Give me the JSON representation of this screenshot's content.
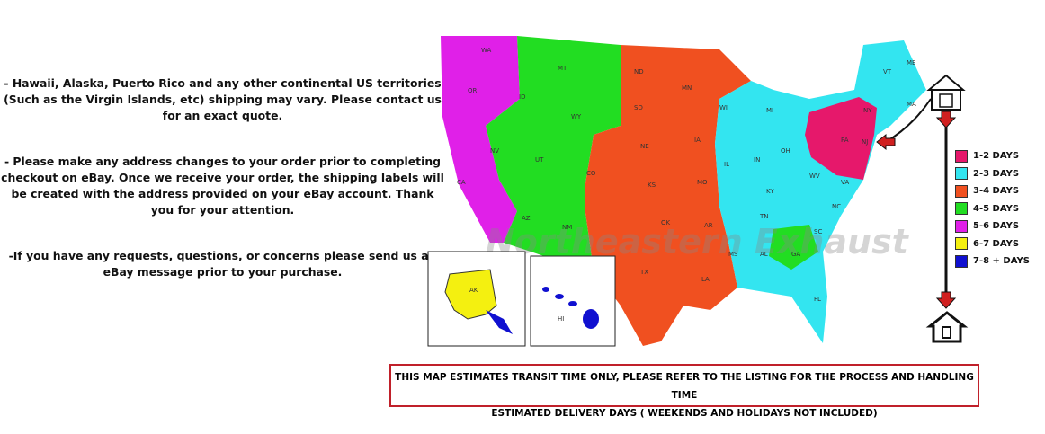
{
  "notes": [
    "- Hawaii, Alaska, Puerto Rico and any other continental US territories (Such as the Virgin Islands, etc) shipping may vary. Please contact us for an exact quote.",
    "- Please make any address changes to your order prior to completing checkout on eBay. Once we receive your order, the shipping labels will be created with the address provided on your eBay account. Thank you for your attention.",
    "-If you have any requests, questions, or concerns please send us an eBay message prior to your purchase."
  ],
  "watermark": "Northeastern Exhaust",
  "legend": [
    {
      "label": "1-2 DAYS",
      "color": "#e6186b"
    },
    {
      "label": "2-3 DAYS",
      "color": "#33e5f0"
    },
    {
      "label": "3-4 DAYS",
      "color": "#f05020"
    },
    {
      "label": "4-5 DAYS",
      "color": "#22dd22"
    },
    {
      "label": "5-6 DAYS",
      "color": "#e020e8"
    },
    {
      "label": "6-7 DAYS",
      "color": "#f4f010"
    },
    {
      "label": "7-8 + DAYS",
      "color": "#1010d0"
    }
  ],
  "icons": {
    "origin": "warehouse-icon",
    "destination": "house-icon",
    "arrow": "arrow-down-icon"
  },
  "notice": {
    "line1": "THIS MAP ESTIMATES TRANSIT TIME ONLY, PLEASE REFER TO THE LISTING FOR THE PROCESS AND HANDLING TIME",
    "line2": "ESTIMATED DELIVERY DAYS ( WEEKENDS AND HOLIDAYS NOT INCLUDED)"
  },
  "state_labels": [
    "WA",
    "OR",
    "CA",
    "ID",
    "NV",
    "MT",
    "WY",
    "UT",
    "AZ",
    "CO",
    "NM",
    "ND",
    "SD",
    "NE",
    "KS",
    "OK",
    "TX",
    "MN",
    "IA",
    "MO",
    "WI",
    "AR",
    "LA",
    "IL",
    "MI",
    "IN",
    "OH",
    "KY",
    "TN",
    "MS",
    "AL",
    "GA",
    "FL",
    "SC",
    "NC",
    "VA",
    "WV",
    "PA",
    "NY",
    "NJ",
    "VT",
    "ME",
    "MA",
    "AK",
    "HI"
  ]
}
